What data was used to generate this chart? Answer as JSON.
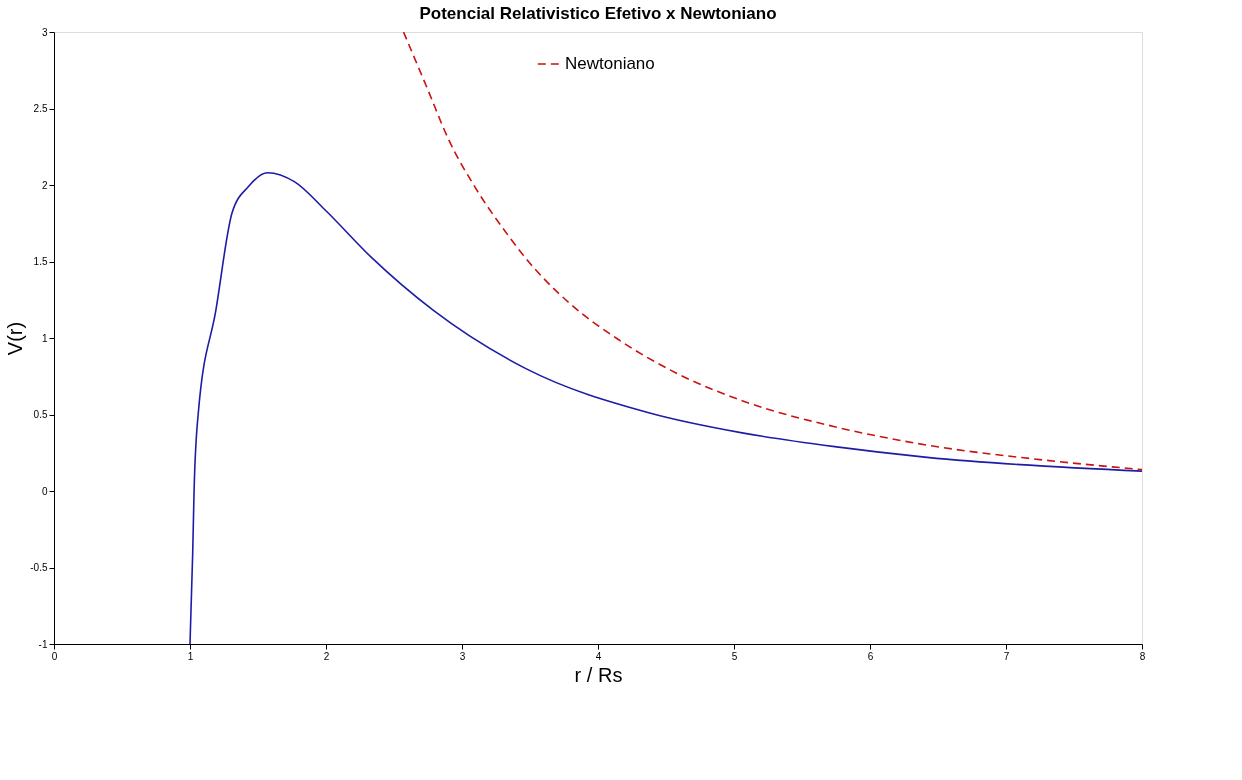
{
  "chart_data": {
    "type": "line",
    "title": "Potencial Relativistico Efetivo x Newtoniano",
    "xlabel": "r / Rs",
    "ylabel": "V(r)",
    "xlim": [
      0,
      8
    ],
    "xticks": [
      0,
      1,
      2,
      3,
      4,
      5,
      6,
      7,
      8
    ],
    "ylim": [
      -1,
      3
    ],
    "yticks": [
      -1,
      -0.5,
      0,
      0.5,
      1,
      1.5,
      2,
      2.5,
      3
    ],
    "grid": false,
    "legend": "top",
    "marker": "none",
    "series": [
      {
        "color": "#1c1ca8",
        "line_style": "solid",
        "x": [
          1,
          1.02,
          1.03,
          1.06,
          1.19,
          1.31,
          1.43,
          1.57,
          1.77,
          1.99,
          2.33,
          2.79,
          3.47,
          4.38,
          5.06,
          5.74,
          6.42,
          8
        ],
        "values": [
          -1,
          -0.4,
          0,
          0.5,
          1.18,
          1.82,
          1.99,
          2.08,
          2.02,
          1.84,
          1.53,
          1.18,
          0.8,
          0.51,
          0.38,
          0.29,
          0.22,
          0.13
        ]
      },
      {
        "name": "Newtoniano",
        "color": "#cc1111",
        "line_style": "dashed",
        "x": [
          2.57,
          2.75,
          2.9,
          3.1,
          3.34,
          3.47,
          3.8,
          4.15,
          4.6,
          5.06,
          5.74,
          6.42,
          7.2,
          8
        ],
        "values": [
          3,
          2.62,
          2.3,
          1.98,
          1.67,
          1.52,
          1.22,
          0.99,
          0.76,
          0.59,
          0.42,
          0.3,
          0.21,
          0.14
        ]
      }
    ]
  }
}
